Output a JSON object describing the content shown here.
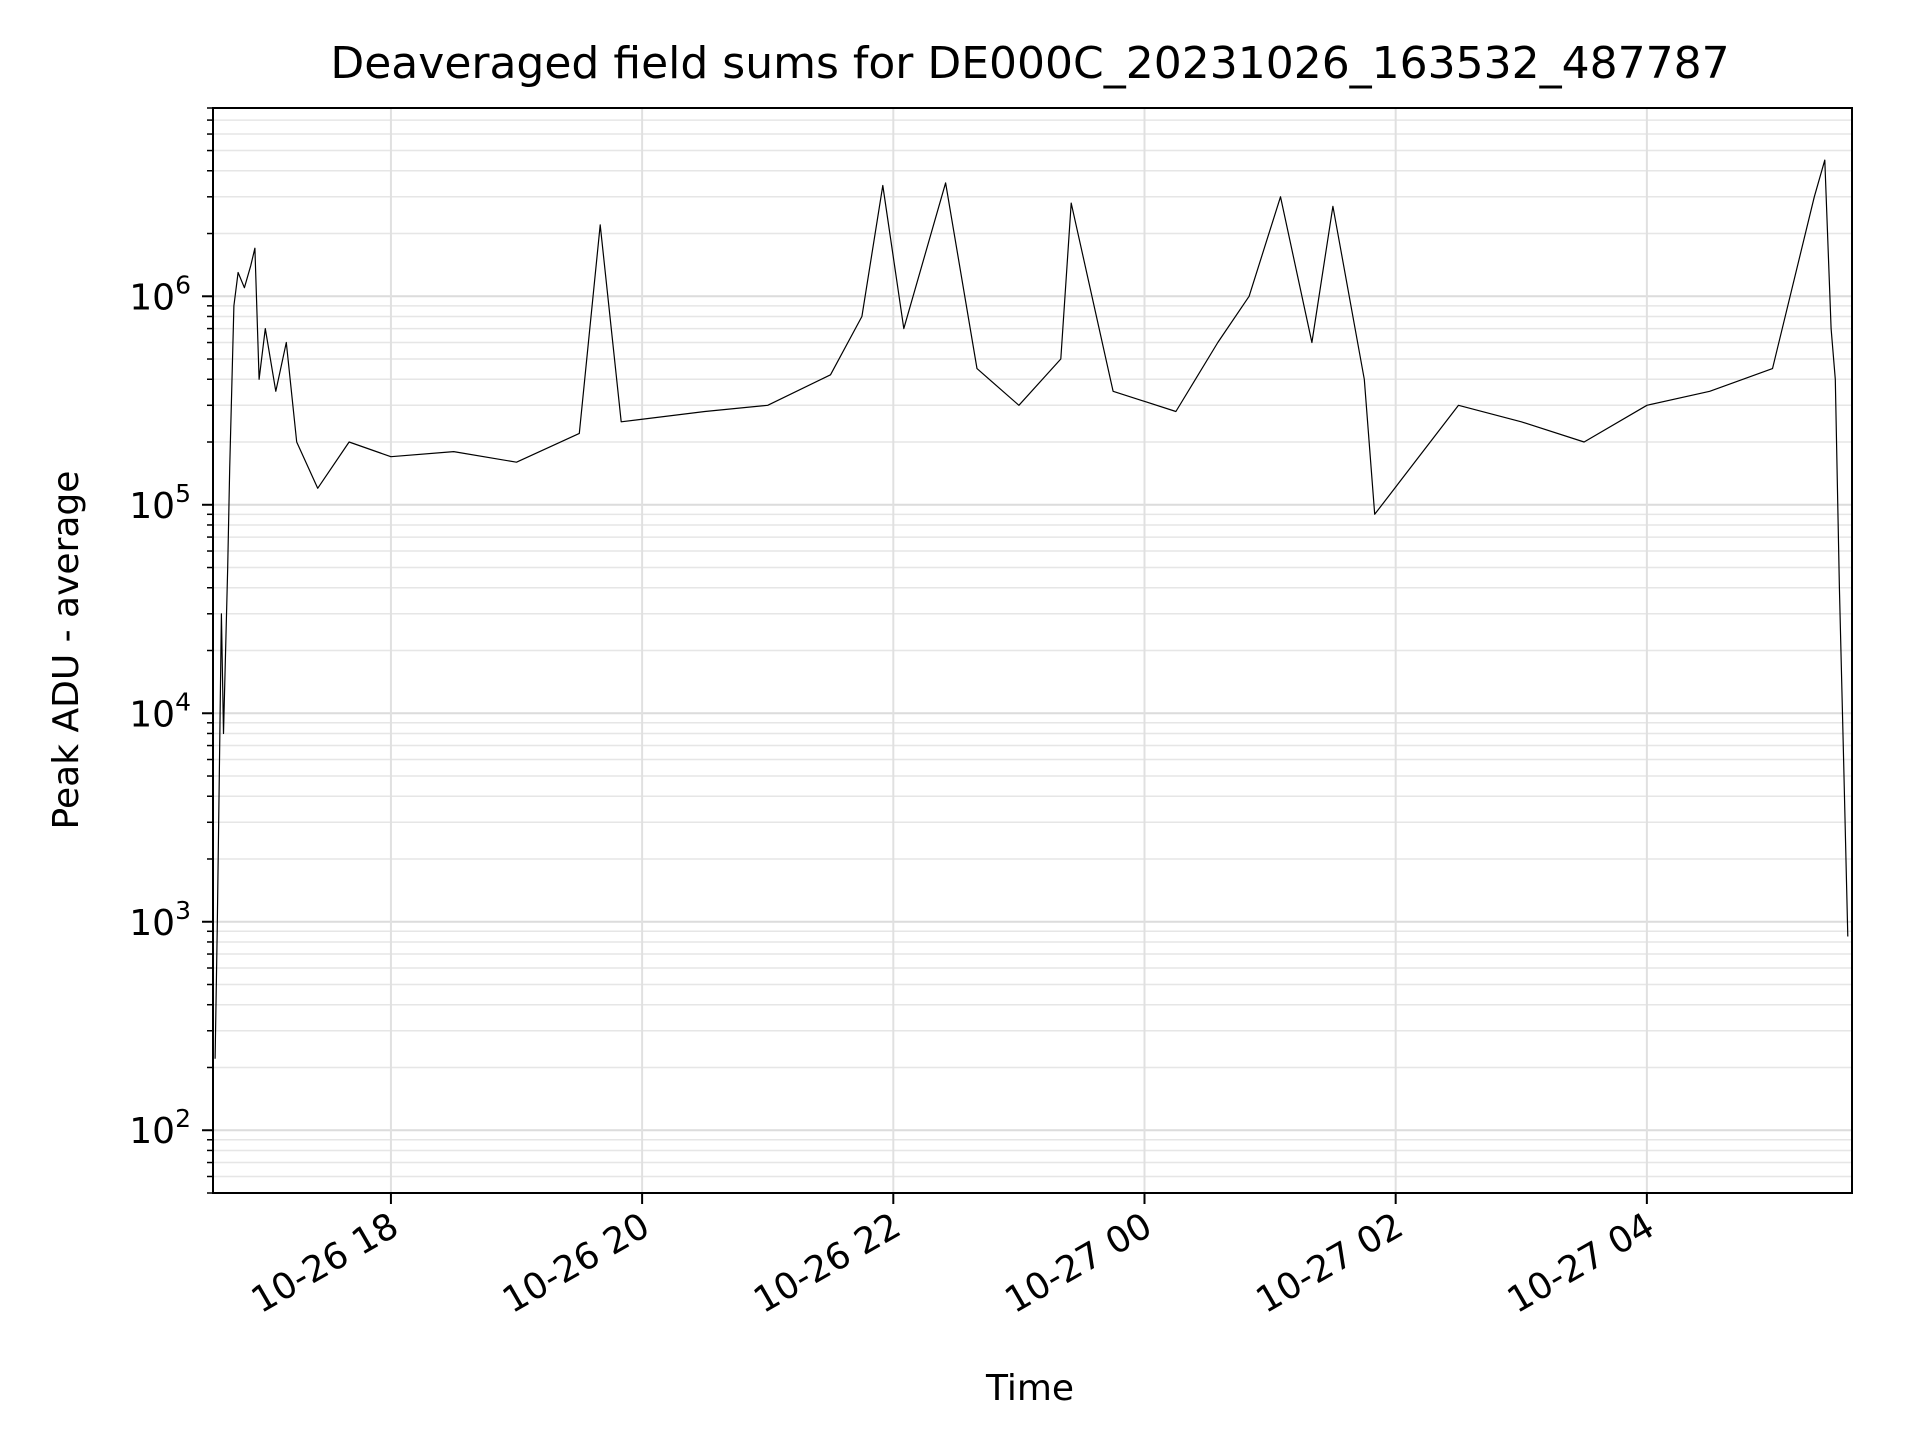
{
  "chart_data": {
    "type": "line",
    "title": "Deaveraged field sums for DE000C_20231026_163532_487787",
    "xlabel": "Time",
    "ylabel": "Peak ADU - average",
    "y_scale": "log",
    "ylim": [
      50,
      8000000
    ],
    "xlim": [
      "2023-10-26 16:35",
      "2023-10-27 05:38"
    ],
    "grid": true,
    "color": "#000000",
    "x_ticks": [
      {
        "t": "2023-10-26 18:00",
        "label": "10-26 18"
      },
      {
        "t": "2023-10-26 20:00",
        "label": "10-26 20"
      },
      {
        "t": "2023-10-26 22:00",
        "label": "10-26 22"
      },
      {
        "t": "2023-10-27 00:00",
        "label": "10-27 00"
      },
      {
        "t": "2023-10-27 02:00",
        "label": "10-27 02"
      },
      {
        "t": "2023-10-27 04:00",
        "label": "10-27 04"
      }
    ],
    "y_ticks": [
      {
        "value": 100,
        "base": "10",
        "exp": "2"
      },
      {
        "value": 1000,
        "base": "10",
        "exp": "3"
      },
      {
        "value": 10000,
        "base": "10",
        "exp": "4"
      },
      {
        "value": 100000,
        "base": "10",
        "exp": "5"
      },
      {
        "value": 1000000,
        "base": "10",
        "exp": "6"
      }
    ],
    "series": [
      {
        "points": [
          [
            "2023-10-26 16:36",
            220
          ],
          [
            "2023-10-26 16:37",
            900
          ],
          [
            "2023-10-26 16:38",
            5000
          ],
          [
            "2023-10-26 16:39",
            30000
          ],
          [
            "2023-10-26 16:40",
            8000
          ],
          [
            "2023-10-26 16:42",
            50000
          ],
          [
            "2023-10-26 16:43",
            150000
          ],
          [
            "2023-10-26 16:45",
            900000
          ],
          [
            "2023-10-26 16:47",
            1300000
          ],
          [
            "2023-10-26 16:50",
            1100000
          ],
          [
            "2023-10-26 16:53",
            1400000
          ],
          [
            "2023-10-26 16:55",
            1700000
          ],
          [
            "2023-10-26 16:57",
            400000
          ],
          [
            "2023-10-26 17:00",
            700000
          ],
          [
            "2023-10-26 17:05",
            350000
          ],
          [
            "2023-10-26 17:10",
            600000
          ],
          [
            "2023-10-26 17:15",
            200000
          ],
          [
            "2023-10-26 17:25",
            120000
          ],
          [
            "2023-10-26 17:40",
            200000
          ],
          [
            "2023-10-26 18:00",
            170000
          ],
          [
            "2023-10-26 18:30",
            180000
          ],
          [
            "2023-10-26 19:00",
            160000
          ],
          [
            "2023-10-26 19:30",
            220000
          ],
          [
            "2023-10-26 19:40",
            2200000
          ],
          [
            "2023-10-26 19:50",
            250000
          ],
          [
            "2023-10-26 20:30",
            280000
          ],
          [
            "2023-10-26 21:00",
            300000
          ],
          [
            "2023-10-26 21:30",
            420000
          ],
          [
            "2023-10-26 21:45",
            800000
          ],
          [
            "2023-10-26 21:55",
            3400000
          ],
          [
            "2023-10-26 22:05",
            700000
          ],
          [
            "2023-10-26 22:25",
            3500000
          ],
          [
            "2023-10-26 22:40",
            450000
          ],
          [
            "2023-10-26 23:00",
            300000
          ],
          [
            "2023-10-26 23:20",
            500000
          ],
          [
            "2023-10-26 23:25",
            2800000
          ],
          [
            "2023-10-26 23:45",
            350000
          ],
          [
            "2023-10-27 00:15",
            280000
          ],
          [
            "2023-10-27 00:35",
            600000
          ],
          [
            "2023-10-27 00:50",
            1000000
          ],
          [
            "2023-10-27 01:05",
            3000000
          ],
          [
            "2023-10-27 01:20",
            600000
          ],
          [
            "2023-10-27 01:30",
            2700000
          ],
          [
            "2023-10-27 01:45",
            400000
          ],
          [
            "2023-10-27 01:50",
            90000
          ],
          [
            "2023-10-27 02:30",
            300000
          ],
          [
            "2023-10-27 03:00",
            250000
          ],
          [
            "2023-10-27 03:30",
            200000
          ],
          [
            "2023-10-27 04:00",
            300000
          ],
          [
            "2023-10-27 04:30",
            350000
          ],
          [
            "2023-10-27 05:00",
            450000
          ],
          [
            "2023-10-27 05:20",
            3000000
          ],
          [
            "2023-10-27 05:25",
            4500000
          ],
          [
            "2023-10-27 05:28",
            700000
          ],
          [
            "2023-10-27 05:30",
            400000
          ],
          [
            "2023-10-27 05:32",
            40000
          ],
          [
            "2023-10-27 05:34",
            6000
          ],
          [
            "2023-10-27 05:36",
            850
          ]
        ]
      }
    ]
  }
}
